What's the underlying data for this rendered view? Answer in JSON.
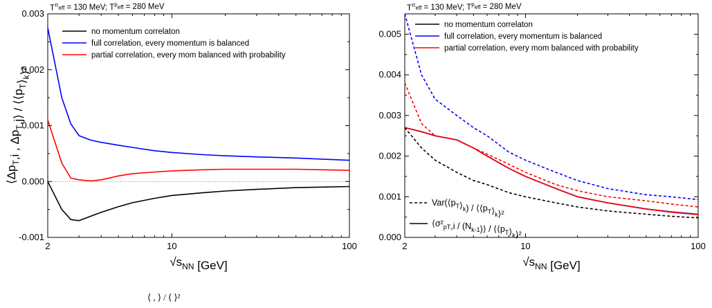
{
  "chart_data": [
    {
      "type": "line",
      "xscale": "log",
      "xlim": [
        2,
        100
      ],
      "ylim": [
        -0.001,
        0.003
      ],
      "xticks": [
        "2",
        "10",
        "100"
      ],
      "yticks": [
        "-0.001",
        "0.000",
        "0.001",
        "0.002",
        "0.003"
      ],
      "xlabel": "√s_NN [GeV]",
      "ylabel": "⟨Δp_T,i , Δp_T,j⟩ / ⟨⟨p_T⟩_k⟩²",
      "header": "T^π_eff = 130 MeV; T^p_eff = 280 MeV",
      "reference_line": 0,
      "legend_position": "top-right",
      "series": [
        {
          "name": "no momentum correlaton",
          "color": "#000000",
          "style": "solid",
          "x": [
            2,
            2.4,
            2.7,
            3.0,
            3.5,
            4.0,
            5.0,
            6.0,
            8.0,
            10,
            15,
            20,
            30,
            50,
            70,
            100
          ],
          "y": [
            0.0,
            -0.0005,
            -0.00068,
            -0.0007,
            -0.00062,
            -0.00055,
            -0.00045,
            -0.00038,
            -0.0003,
            -0.00025,
            -0.0002,
            -0.00017,
            -0.00014,
            -0.00011,
            -0.0001,
            -9e-05
          ]
        },
        {
          "name": "full correlation, every momentum is balanced",
          "color": "#0000ff",
          "style": "solid",
          "x": [
            2,
            2.4,
            2.7,
            3.0,
            3.5,
            4.0,
            5.0,
            6.0,
            8.0,
            10,
            15,
            20,
            30,
            50,
            70,
            100
          ],
          "y": [
            0.00275,
            0.0015,
            0.00103,
            0.00082,
            0.00074,
            0.0007,
            0.00065,
            0.00061,
            0.00055,
            0.00052,
            0.00048,
            0.00046,
            0.00044,
            0.00042,
            0.0004,
            0.00038
          ]
        },
        {
          "name": "partial correlation, every mom balanced with probability",
          "color": "#ff0000",
          "style": "solid",
          "x": [
            2,
            2.4,
            2.7,
            3.0,
            3.5,
            4.0,
            5.0,
            6.0,
            8.0,
            10,
            15,
            20,
            30,
            50,
            70,
            100
          ],
          "y": [
            0.0011,
            0.00033,
            6e-05,
            3e-05,
            1e-05,
            3e-05,
            0.0001,
            0.00014,
            0.00017,
            0.00019,
            0.00021,
            0.00022,
            0.00022,
            0.00022,
            0.00021,
            0.0002
          ]
        }
      ]
    },
    {
      "type": "line",
      "xscale": "log",
      "xlim": [
        2,
        100
      ],
      "ylim": [
        0,
        0.0055
      ],
      "xticks": [
        "2",
        "10",
        "100"
      ],
      "yticks": [
        "0.000",
        "0.001",
        "0.002",
        "0.003",
        "0.004",
        "0.005"
      ],
      "xlabel": "√s_NN [GeV]",
      "ylabel": "",
      "header": "T^π_eff = 130 MeV; T^p_eff = 280 MeV",
      "legend_position": "top-right",
      "style_legend": [
        {
          "style": "dashed",
          "label": "Var(⟨p_T⟩_k) / ⟨⟨p_T⟩_k⟩²"
        },
        {
          "style": "solid",
          "label": "⟨σ²_pT,i / (N_k-1)⟩ / ⟨⟨p_T⟩_k⟩²"
        }
      ],
      "series": [
        {
          "name": "no momentum correlaton",
          "color": "#000000",
          "style": "solid",
          "x": [
            2,
            2.5,
            3,
            4,
            5,
            6,
            8,
            10,
            15,
            20,
            30,
            50,
            70,
            100
          ],
          "y": [
            0.0027,
            0.0026,
            0.0025,
            0.0024,
            0.0022,
            0.002,
            0.0017,
            0.0015,
            0.0012,
            0.001,
            0.00085,
            0.0007,
            0.00062,
            0.00056
          ]
        },
        {
          "name": "full correlation, every momentum is balanced",
          "color": "#0000ff",
          "style": "solid",
          "x": [
            2,
            2.5,
            3,
            4,
            5,
            6,
            8,
            10,
            15,
            20,
            30,
            50,
            70,
            100
          ],
          "y": [
            0.0027,
            0.0026,
            0.0025,
            0.0024,
            0.0022,
            0.002,
            0.0017,
            0.0015,
            0.0012,
            0.001,
            0.00085,
            0.0007,
            0.00063,
            0.00057
          ]
        },
        {
          "name": "partial correlation, every mom balanced with probability",
          "color": "#ff0000",
          "style": "solid",
          "x": [
            2,
            2.5,
            3,
            4,
            5,
            6,
            8,
            10,
            15,
            20,
            30,
            50,
            70,
            100
          ],
          "y": [
            0.0027,
            0.0026,
            0.0025,
            0.0024,
            0.0022,
            0.002,
            0.0017,
            0.0015,
            0.0012,
            0.001,
            0.00085,
            0.0007,
            0.00062,
            0.00056
          ]
        },
        {
          "name": "",
          "color": "#000000",
          "style": "dashed",
          "x": [
            2,
            2.5,
            3,
            4,
            5,
            6,
            8,
            10,
            15,
            20,
            30,
            50,
            70,
            100
          ],
          "y": [
            0.0027,
            0.0022,
            0.0019,
            0.0016,
            0.0014,
            0.0013,
            0.0011,
            0.001,
            0.00085,
            0.00075,
            0.00065,
            0.00057,
            0.00052,
            0.00048
          ]
        },
        {
          "name": "",
          "color": "#0000ff",
          "style": "dashed",
          "x": [
            2,
            2.5,
            3,
            4,
            5,
            6,
            8,
            10,
            15,
            20,
            30,
            50,
            70,
            100
          ],
          "y": [
            0.0055,
            0.004,
            0.0034,
            0.003,
            0.0027,
            0.0025,
            0.0021,
            0.0019,
            0.0016,
            0.0014,
            0.0012,
            0.00105,
            0.001,
            0.00093
          ]
        },
        {
          "name": "",
          "color": "#ff0000",
          "style": "dashed",
          "x": [
            2,
            2.5,
            3,
            4,
            5,
            6,
            8,
            10,
            15,
            20,
            30,
            50,
            70,
            100
          ],
          "y": [
            0.0038,
            0.0028,
            0.0025,
            0.0024,
            0.0022,
            0.00205,
            0.0018,
            0.0016,
            0.0013,
            0.00115,
            0.001,
            0.0009,
            0.00082,
            0.00075
          ]
        }
      ]
    }
  ],
  "caption_fragment": "⟨ , ⟩ / ⟨ ⟩²"
}
